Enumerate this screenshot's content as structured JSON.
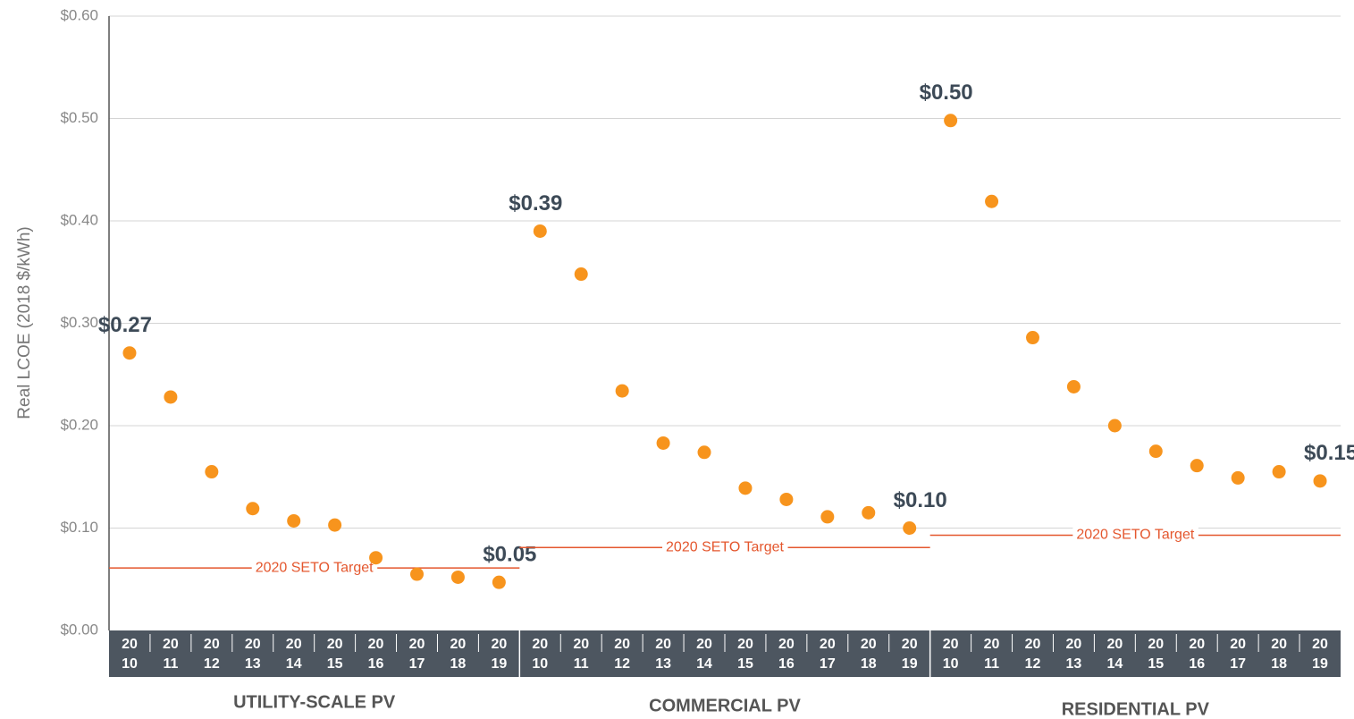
{
  "chart_data": {
    "type": "grouped-dot",
    "ylabel": "Real LCOE (2018 $/kWh)",
    "ylim": [
      0,
      0.6
    ],
    "yticks": [
      {
        "value": 0,
        "label": "$0.00"
      },
      {
        "value": 0.1,
        "label": "$0.10"
      },
      {
        "value": 0.2,
        "label": "$0.20"
      },
      {
        "value": 0.3,
        "label": "$0.30"
      },
      {
        "value": 0.4,
        "label": "$0.40"
      },
      {
        "value": 0.5,
        "label": "$0.50"
      },
      {
        "value": 0.6,
        "label": "$0.60"
      }
    ],
    "grid": true,
    "color": "#f7941d",
    "target_color": "#e4572e",
    "groups": [
      {
        "name": "UTILITY-SCALE PV",
        "categories": [
          "2010",
          "2011",
          "2012",
          "2013",
          "2014",
          "2015",
          "2016",
          "2017",
          "2018",
          "2019"
        ],
        "values": [
          0.271,
          0.228,
          0.155,
          0.119,
          0.107,
          0.103,
          0.071,
          0.055,
          0.052,
          0.047
        ],
        "value_labels": [
          "$0.27",
          null,
          null,
          null,
          null,
          null,
          null,
          null,
          null,
          "$0.05"
        ],
        "target": 0.061,
        "target_label": "2020 SETO Target"
      },
      {
        "name": "COMMERCIAL PV",
        "categories": [
          "2010",
          "2011",
          "2012",
          "2013",
          "2014",
          "2015",
          "2016",
          "2017",
          "2018",
          "2019"
        ],
        "values": [
          0.39,
          0.348,
          0.234,
          0.183,
          0.174,
          0.139,
          0.128,
          0.111,
          0.115,
          0.1
        ],
        "value_labels": [
          "$0.39",
          null,
          null,
          null,
          null,
          null,
          null,
          null,
          null,
          "$0.10"
        ],
        "target": 0.081,
        "target_label": "2020 SETO Target"
      },
      {
        "name": "RESIDENTIAL PV",
        "categories": [
          "2010",
          "2011",
          "2012",
          "2013",
          "2014",
          "2015",
          "2016",
          "2017",
          "2018",
          "2019"
        ],
        "values": [
          0.498,
          0.419,
          0.286,
          0.238,
          0.2,
          0.175,
          0.161,
          0.149,
          0.155,
          0.146
        ],
        "value_labels": [
          "$0.50",
          null,
          null,
          null,
          null,
          null,
          null,
          null,
          null,
          "$0.15"
        ],
        "target": 0.093,
        "target_label": "2020 SETO Target"
      }
    ]
  }
}
